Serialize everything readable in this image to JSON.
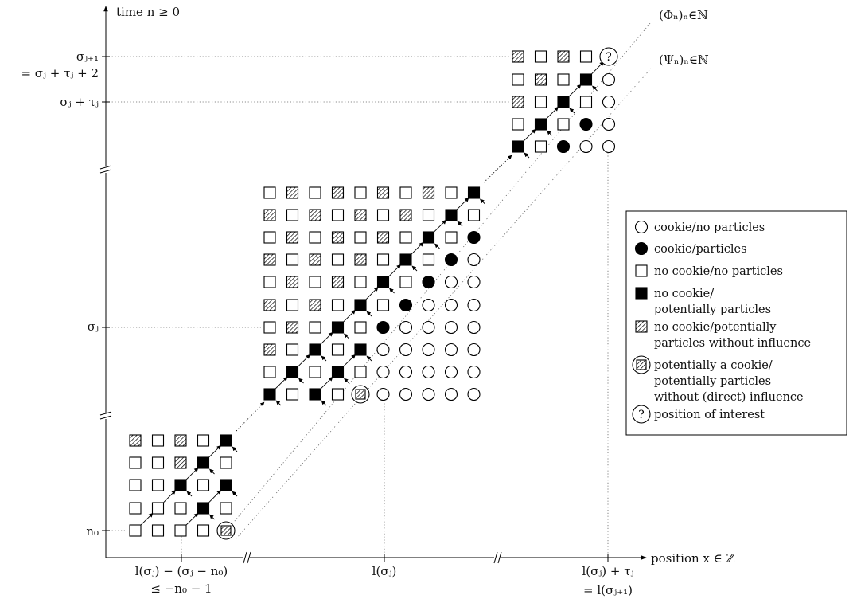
{
  "axes": {
    "y_title": "time n ≥ 0",
    "x_title": "position x ∈ ℤ",
    "y_ticks": [
      {
        "text": "n₀"
      },
      {
        "text": "σⱼ"
      },
      {
        "text": "σⱼ + τⱼ"
      },
      {
        "text": "σⱼ₊₁"
      },
      {
        "text": "= σⱼ + τⱼ + 2"
      }
    ],
    "x_ticks": [
      {
        "text": "l(σⱼ) − (σⱼ − n₀)"
      },
      {
        "text": "≤ −n₀ − 1"
      },
      {
        "text": "l(σⱼ)"
      },
      {
        "text": "l(σⱼ) + τⱼ"
      },
      {
        "text": "= l(σⱼ₊₁)"
      }
    ]
  },
  "paths": {
    "phi": "(Φₙ)ₙ∈ℕ",
    "psi": "(Ψₙ)ₙ∈ℕ"
  },
  "question_glyph": "?",
  "legend": {
    "items": [
      {
        "symbol": "open-circle",
        "lines": [
          "cookie/no particles"
        ]
      },
      {
        "symbol": "filled-circle",
        "lines": [
          "cookie/particles"
        ]
      },
      {
        "symbol": "open-square",
        "lines": [
          "no cookie/no particles"
        ]
      },
      {
        "symbol": "filled-square",
        "lines": [
          "no cookie/",
          "potentially particles"
        ]
      },
      {
        "symbol": "hatched-square",
        "lines": [
          "no cookie/potentially",
          "particles without influence"
        ]
      },
      {
        "symbol": "hatched-circle-square",
        "lines": [
          "potentially a cookie/",
          "potentially particles",
          "without (direct) influence"
        ]
      },
      {
        "symbol": "question-circle",
        "lines": [
          "position of interest"
        ]
      }
    ]
  }
}
